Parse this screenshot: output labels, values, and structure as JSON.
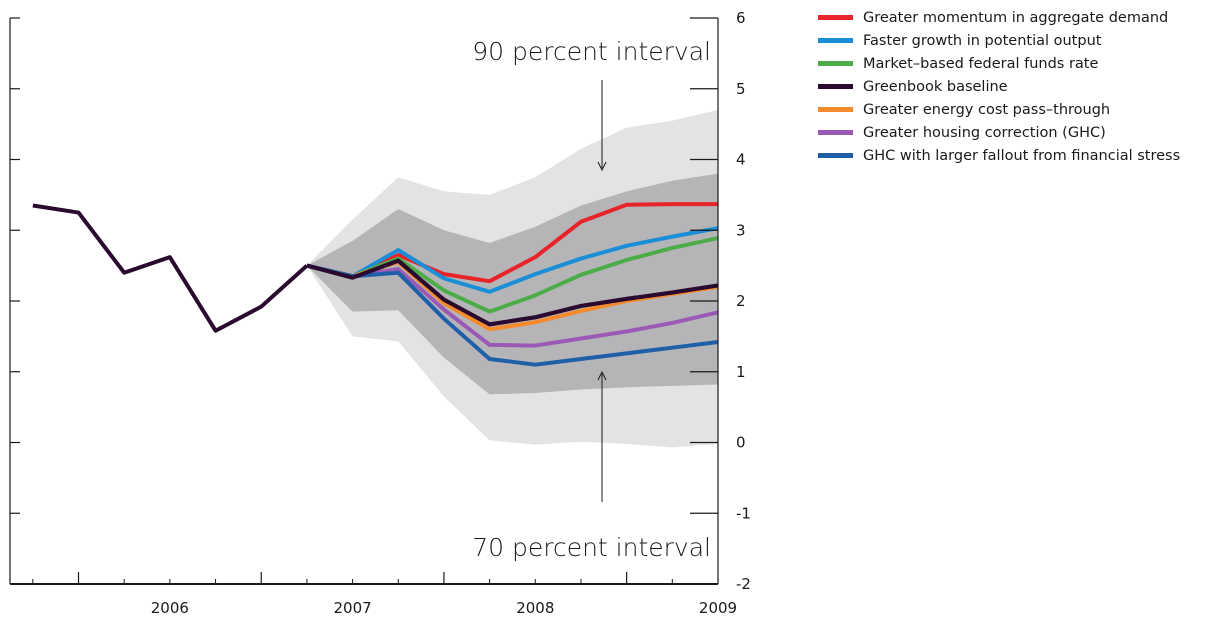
{
  "chart_data": {
    "type": "line",
    "y_axis": {
      "ticks": [
        6,
        5,
        4,
        3,
        2,
        1,
        0,
        -1,
        -2
      ],
      "ylim": [
        -2,
        6
      ],
      "side": "right"
    },
    "x_axis": {
      "ticks": [
        "2006",
        "2007",
        "2008",
        "2009"
      ],
      "xlim": [
        2005.625,
        2009.5
      ]
    },
    "annotations": {
      "upper": "90 percent interval",
      "lower": "70 percent interval"
    },
    "history": {
      "name": "Greenbook baseline",
      "x": [
        2005.75,
        2006.0,
        2006.25,
        2006.5,
        2006.75,
        2007.0,
        2007.25
      ],
      "y": [
        3.35,
        3.25,
        2.4,
        2.62,
        1.58,
        1.92,
        2.5
      ]
    },
    "bands": {
      "x": [
        2007.25,
        2007.5,
        2007.75,
        2008.0,
        2008.25,
        2008.5,
        2008.75,
        2009.0,
        2009.25,
        2009.5
      ],
      "p90_upper": [
        2.5,
        3.15,
        3.75,
        3.55,
        3.5,
        3.75,
        4.15,
        4.45,
        4.55,
        4.7
      ],
      "p70_upper": [
        2.5,
        2.85,
        3.3,
        3.0,
        2.82,
        3.05,
        3.35,
        3.55,
        3.7,
        3.8
      ],
      "p70_lower": [
        2.5,
        1.85,
        1.87,
        1.2,
        0.68,
        0.7,
        0.75,
        0.78,
        0.8,
        0.82
      ],
      "p90_lower": [
        2.5,
        1.5,
        1.43,
        0.65,
        0.03,
        -0.03,
        0.01,
        -0.02,
        -0.07,
        -0.02
      ]
    },
    "series": [
      {
        "name": "Greater momentum in aggregate demand",
        "color": "#e8242b",
        "x": [
          2007.25,
          2007.5,
          2007.75,
          2008.0,
          2008.25,
          2008.5,
          2008.75,
          2009.0,
          2009.25,
          2009.5
        ],
        "y": [
          2.5,
          2.35,
          2.65,
          2.38,
          2.28,
          2.62,
          3.12,
          3.36,
          3.37,
          3.37
        ]
      },
      {
        "name": "Faster growth in potential output",
        "color": "#1a8ed6",
        "x": [
          2007.25,
          2007.5,
          2007.75,
          2008.0,
          2008.25,
          2008.5,
          2008.75,
          2009.0,
          2009.25,
          2009.5
        ],
        "y": [
          2.5,
          2.35,
          2.72,
          2.32,
          2.13,
          2.38,
          2.6,
          2.78,
          2.91,
          3.03
        ]
      },
      {
        "name": "Market–based federal funds rate",
        "color": "#4cad48",
        "x": [
          2007.25,
          2007.5,
          2007.75,
          2008.0,
          2008.25,
          2008.5,
          2008.75,
          2009.0,
          2009.25,
          2009.5
        ],
        "y": [
          2.5,
          2.35,
          2.6,
          2.15,
          1.85,
          2.08,
          2.37,
          2.58,
          2.75,
          2.89
        ]
      },
      {
        "name": "Greater energy cost pass–through",
        "color": "#f58a2c",
        "x": [
          2007.25,
          2007.5,
          2007.75,
          2008.0,
          2008.25,
          2008.5,
          2008.75,
          2009.0,
          2009.25,
          2009.5
        ],
        "y": [
          2.5,
          2.35,
          2.55,
          1.97,
          1.6,
          1.7,
          1.86,
          2.0,
          2.1,
          2.2
        ]
      },
      {
        "name": "Greater housing correction (GHC)",
        "color": "#9b59b6",
        "x": [
          2007.25,
          2007.5,
          2007.75,
          2008.0,
          2008.25,
          2008.5,
          2008.75,
          2009.0,
          2009.25,
          2009.5
        ],
        "y": [
          2.5,
          2.35,
          2.45,
          1.88,
          1.38,
          1.37,
          1.47,
          1.57,
          1.69,
          1.84
        ]
      },
      {
        "name": "GHC with larger fallout from financial stress",
        "color": "#1f5fa8",
        "x": [
          2007.25,
          2007.5,
          2007.75,
          2008.0,
          2008.25,
          2008.5,
          2008.75,
          2009.0,
          2009.25,
          2009.5
        ],
        "y": [
          2.5,
          2.35,
          2.4,
          1.75,
          1.18,
          1.1,
          1.18,
          1.26,
          1.34,
          1.42
        ]
      },
      {
        "name": "Greenbook baseline",
        "color": "#2b0a2f",
        "x": [
          2007.25,
          2007.5,
          2007.75,
          2008.0,
          2008.25,
          2008.5,
          2008.75,
          2009.0,
          2009.25,
          2009.5
        ],
        "y": [
          2.5,
          2.33,
          2.57,
          2.02,
          1.67,
          1.77,
          1.93,
          2.03,
          2.12,
          2.22
        ]
      }
    ],
    "legend": [
      {
        "label": "Greater momentum in aggregate demand",
        "color": "#e8242b"
      },
      {
        "label": "Faster growth in potential output",
        "color": "#1a8ed6"
      },
      {
        "label": "Market–based federal funds rate",
        "color": "#4cad48"
      },
      {
        "label": "Greenbook baseline",
        "color": "#2b0a2f"
      },
      {
        "label": "Greater energy cost pass–through",
        "color": "#f58a2c"
      },
      {
        "label": "Greater housing correction (GHC)",
        "color": "#9b59b6"
      },
      {
        "label": "GHC with larger fallout from financial stress",
        "color": "#1f5fa8"
      }
    ],
    "colors": {
      "band90": "#e3e3e4",
      "band70": "#b5b5b8",
      "axis": "#1a1a1a"
    },
    "grid": false,
    "legend_position": "top-right"
  }
}
